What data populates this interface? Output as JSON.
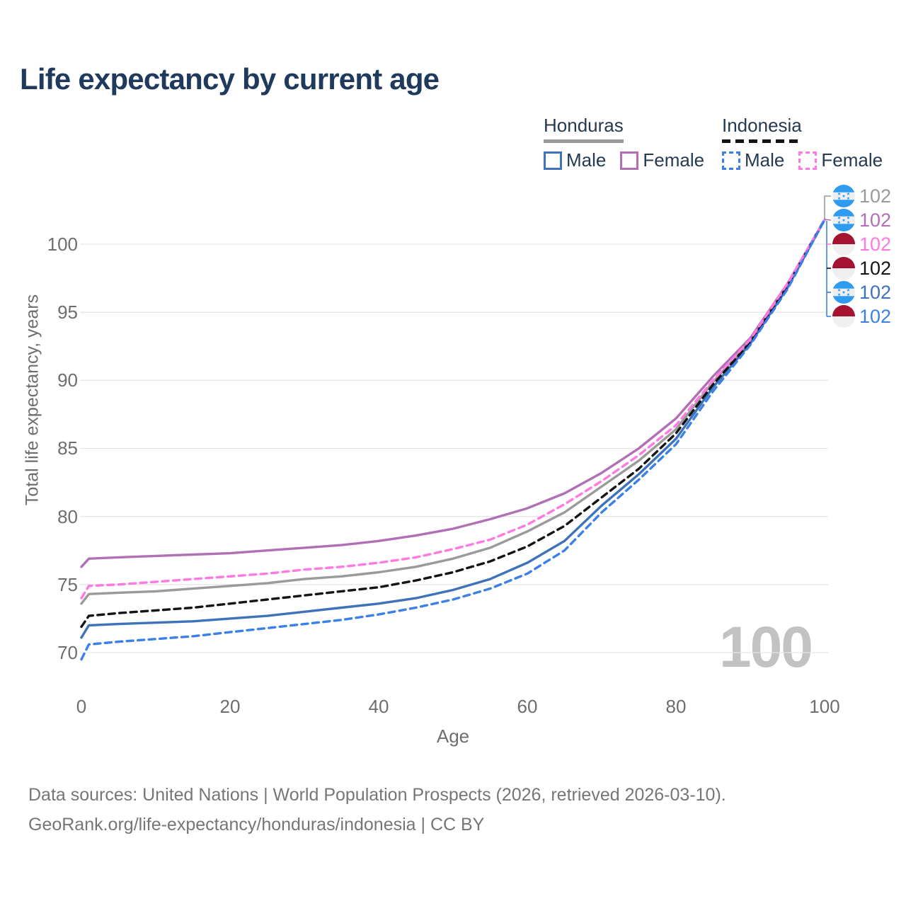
{
  "title": "Life expectancy by current age",
  "watermark": "100",
  "legend": {
    "groups": [
      {
        "country": "Honduras",
        "line_style": "solid",
        "line_color": "#9a9a9a",
        "items": [
          {
            "label": "Male",
            "color": "#3e72bb",
            "dashed": false
          },
          {
            "label": "Female",
            "color": "#b16fb5",
            "dashed": false
          }
        ]
      },
      {
        "country": "Indonesia",
        "line_style": "dashed",
        "line_color": "#141414",
        "items": [
          {
            "label": "Male",
            "color": "#3b80e8",
            "dashed": true
          },
          {
            "label": "Female",
            "color": "#ff79e1",
            "dashed": true
          }
        ]
      }
    ]
  },
  "footer": {
    "line1": "Data sources: United Nations | World Population Prospects (2026, retrieved 2026-03-10).",
    "line2": "GeoRank.org/life-expectancy/honduras/indonesia | CC BY"
  },
  "colors": {
    "title": "#1f3a5c",
    "axis_text": "#6e6e6e",
    "grid": "#e6e6e6",
    "watermark": "#c2c2c2",
    "footer": "#767676",
    "flag_blue": "#2d9bf0",
    "flag_red": "#a51330",
    "flag_bg": "#efefef"
  },
  "chart_data": {
    "type": "line",
    "title": "Life expectancy by current age",
    "xlabel": "Age",
    "ylabel": "Total life expectancy, years",
    "x_ticks": [
      0,
      20,
      40,
      60,
      80,
      100
    ],
    "y_ticks": [
      70,
      75,
      80,
      85,
      90,
      95,
      100
    ],
    "xlim": [
      0,
      100
    ],
    "ylim": [
      68.5,
      103
    ],
    "grid": "horizontal",
    "legend_position": "top-right",
    "x": [
      0,
      1,
      5,
      10,
      15,
      20,
      25,
      30,
      35,
      40,
      45,
      50,
      55,
      60,
      65,
      70,
      75,
      80,
      85,
      90,
      95,
      100
    ],
    "series": [
      {
        "name": "Honduras Total",
        "color": "#9a9a9a",
        "dashed": false,
        "values": [
          73.6,
          74.3,
          74.4,
          74.5,
          74.7,
          74.9,
          75.1,
          75.4,
          75.6,
          75.9,
          76.3,
          76.9,
          77.7,
          78.9,
          80.3,
          82.2,
          84.1,
          86.4,
          89.9,
          92.9,
          97.0,
          101.8
        ]
      },
      {
        "name": "Honduras Female",
        "color": "#b16fb5",
        "dashed": false,
        "values": [
          76.3,
          76.9,
          77.0,
          77.1,
          77.2,
          77.3,
          77.5,
          77.7,
          77.9,
          78.2,
          78.6,
          79.1,
          79.8,
          80.6,
          81.7,
          83.2,
          85.0,
          87.2,
          90.3,
          93.1,
          97.1,
          101.8
        ]
      },
      {
        "name": "Honduras Male",
        "color": "#3e72bb",
        "dashed": false,
        "values": [
          71.1,
          72.0,
          72.1,
          72.2,
          72.3,
          72.5,
          72.7,
          73.0,
          73.3,
          73.6,
          74.0,
          74.6,
          75.4,
          76.6,
          78.2,
          80.8,
          83.1,
          85.7,
          89.5,
          92.7,
          96.8,
          101.8
        ]
      },
      {
        "name": "Indonesia Total",
        "color": "#141414",
        "dashed": true,
        "values": [
          71.9,
          72.7,
          72.9,
          73.1,
          73.3,
          73.6,
          73.9,
          74.2,
          74.5,
          74.8,
          75.3,
          75.9,
          76.7,
          77.8,
          79.3,
          81.4,
          83.5,
          86.1,
          89.7,
          92.8,
          96.9,
          101.8
        ]
      },
      {
        "name": "Indonesia Female",
        "color": "#ff79e1",
        "dashed": true,
        "values": [
          74.0,
          74.9,
          75.0,
          75.2,
          75.4,
          75.6,
          75.8,
          76.1,
          76.3,
          76.6,
          77.0,
          77.6,
          78.3,
          79.4,
          80.9,
          82.6,
          84.5,
          86.7,
          90.0,
          93.0,
          97.1,
          101.8
        ]
      },
      {
        "name": "Indonesia Male",
        "color": "#3b80e8",
        "dashed": true,
        "values": [
          69.5,
          70.6,
          70.8,
          71.0,
          71.2,
          71.5,
          71.8,
          72.1,
          72.4,
          72.8,
          73.3,
          73.9,
          74.7,
          75.8,
          77.5,
          80.3,
          82.7,
          85.3,
          89.2,
          92.6,
          96.7,
          101.8
        ]
      }
    ],
    "end_labels": [
      {
        "flag": "honduras",
        "series": "Honduras Total",
        "value": "102",
        "color": "#9a9a9a"
      },
      {
        "flag": "honduras",
        "series": "Honduras Female",
        "value": "102",
        "color": "#b16fb5"
      },
      {
        "flag": "indonesia",
        "series": "Indonesia Female",
        "value": "102",
        "color": "#ff79e1"
      },
      {
        "flag": "indonesia",
        "series": "Indonesia Total",
        "value": "102",
        "color": "#141414"
      },
      {
        "flag": "honduras",
        "series": "Honduras Male",
        "value": "102",
        "color": "#3e72bb"
      },
      {
        "flag": "indonesia",
        "series": "Indonesia Male",
        "value": "102",
        "color": "#3b80e8"
      }
    ]
  }
}
